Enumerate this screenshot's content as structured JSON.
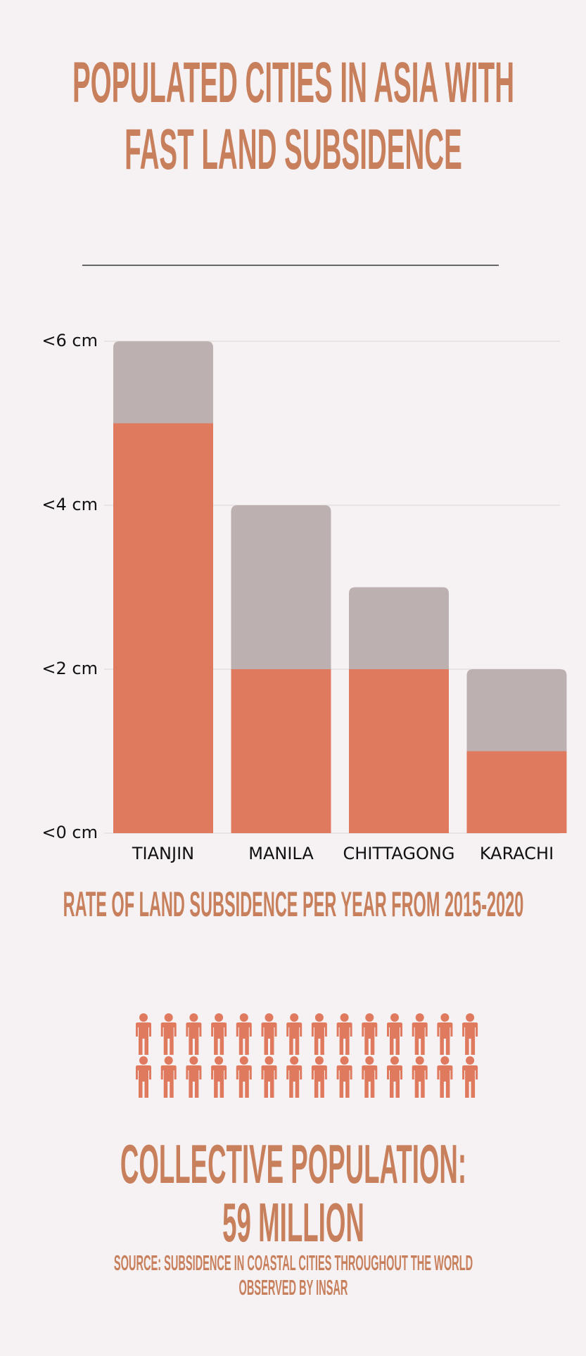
{
  "chart_data": {
    "type": "stacked_bar",
    "title": "POPULATED CITIES IN ASIA WITH FAST LAND SUBSIDENCE",
    "xlabel": "RATE OF LAND SUBSIDENCE PER YEAR FROM 2015-2020",
    "categories": [
      "TIANJIN",
      "MANILA",
      "CHITTAGONG",
      "KARACHI"
    ],
    "series": [
      {
        "color": "#e07a5f",
        "values": [
          5,
          2,
          2,
          1
        ]
      },
      {
        "color": "#bdb0b0",
        "values": [
          1,
          2,
          1,
          1
        ]
      }
    ],
    "ylim": [
      0,
      6
    ],
    "yticks": [
      {
        "value": 0,
        "label": "<0 cm"
      },
      {
        "value": 2,
        "label": "<2 cm"
      },
      {
        "value": 4,
        "label": "<4 cm"
      },
      {
        "value": 6,
        "label": "<6 cm"
      }
    ],
    "grid": true
  },
  "population": {
    "label": "COLLECTIVE POPULATION:",
    "value": "59 MILLION"
  },
  "source": "SOURCE: SUBSIDENCE IN COASTAL CITIES THROUGHOUT THE WORLD OBSERVED BY INSAR"
}
